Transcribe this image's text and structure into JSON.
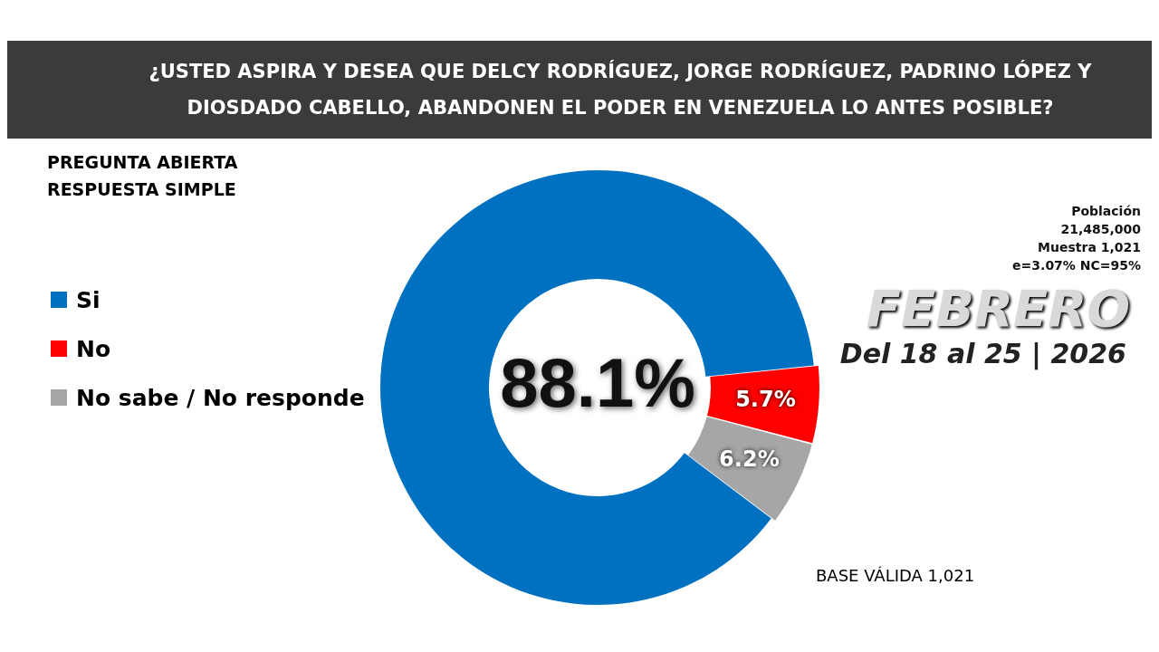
{
  "chart_data": {
    "type": "donut",
    "title": "¿USTED ASPIRA Y DESEA QUE DELCY RODRÍGUEZ, JORGE RODRÍGUEZ, PADRINO LÓPEZ Y DIOSDADO CABELLO, ABANDONEN EL PODER EN VENEZUELA LO ANTES POSIBLE?",
    "subtitle": "PREGUNTA  ABIERTA\nRESPUESTA SIMPLE",
    "categories": [
      "Si",
      "No",
      "No sabe / No responde"
    ],
    "values": [
      88.1,
      5.7,
      6.2
    ],
    "colors": [
      "#0070c0",
      "#ff0000",
      "#a6a6a6"
    ],
    "value_labels": [
      "88.1%",
      "5.7%",
      "6.2%"
    ],
    "legend": "left",
    "annotations": [
      "Población\n21,485,000\nMuestra 1,021\ne=3.07%  NC=95%",
      "FEBRERO",
      "Del 18 al 25 | 2026",
      "BASE VÁLIDA 1,021"
    ]
  }
}
